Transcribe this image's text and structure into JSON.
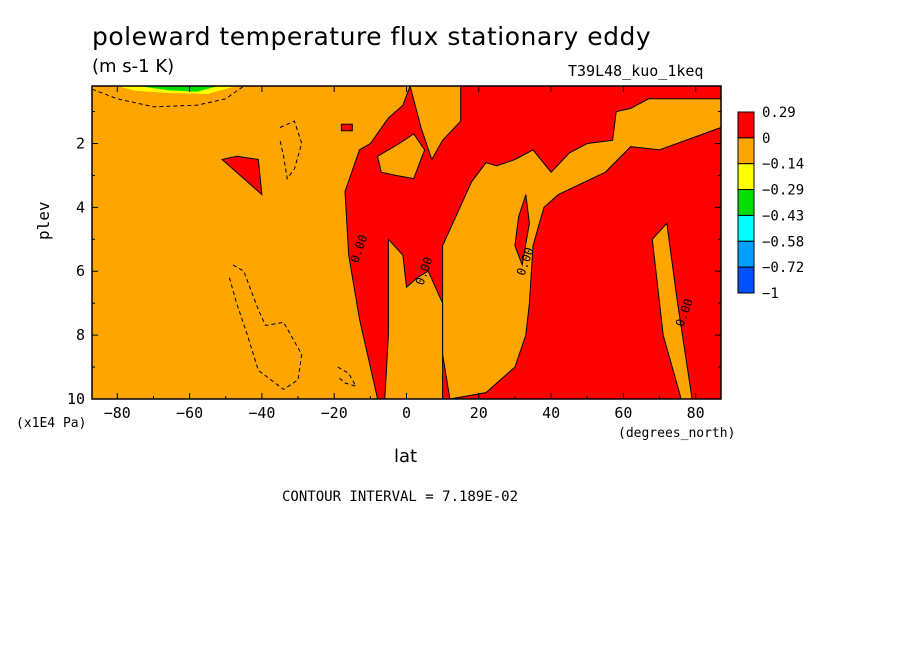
{
  "chart_data": {
    "type": "heatmap",
    "title": "poleward temperature flux stationary eddy",
    "units": "(m s-1 K)",
    "run_label": "T39L48_kuo_1keq",
    "xlabel": "lat",
    "ylabel": "plev",
    "xunits": "(degrees_north)",
    "yunits": "(x1E4 Pa)",
    "xlim": [
      -87,
      87
    ],
    "ylim": [
      10,
      0.2
    ],
    "x_ticks": [
      -80,
      -60,
      -40,
      -20,
      0,
      20,
      40,
      60,
      80
    ],
    "x_tick_labels": [
      "−80",
      "−60",
      "−40",
      "−20",
      "0",
      "20",
      "40",
      "60",
      "80"
    ],
    "y_ticks": [
      2,
      4,
      6,
      8,
      10
    ],
    "y_tick_labels": [
      "2",
      "4",
      "6",
      "8",
      "10"
    ],
    "contour_interval_text": "CONTOUR INTERVAL = 7.189E-02",
    "contour_label_text": "0.00",
    "contour_label_positions": [
      [
        -13,
        5.3
      ],
      [
        5,
        6.0
      ],
      [
        33,
        5.7
      ],
      [
        77,
        7.3
      ]
    ],
    "colorbar": {
      "levels": [
        0.29,
        0,
        -0.14,
        -0.29,
        -0.43,
        -0.58,
        -0.72,
        -1
      ],
      "level_labels": [
        "0.29",
        "0",
        "−0.14",
        "−0.29",
        "−0.43",
        "−0.58",
        "−0.72",
        "−1"
      ],
      "colors": [
        "#ff0000",
        "#ffa500",
        "#ffff00",
        "#00dd00",
        "#00ffff",
        "#00a0ff",
        "#0050ff"
      ]
    },
    "regions": {
      "background_color": "#ffa500",
      "positive_color": "#ff0000",
      "positive_main": [
        [
          1,
          0.2
        ],
        [
          87,
          0.2
        ],
        [
          87,
          10
        ],
        [
          79,
          10
        ],
        [
          75,
          7
        ],
        [
          72,
          4.5
        ],
        [
          68,
          5
        ],
        [
          71,
          8
        ],
        [
          76,
          10
        ],
        [
          10,
          10
        ],
        [
          10,
          7
        ],
        [
          8,
          6.5
        ],
        [
          6,
          6
        ],
        [
          3,
          6.2
        ],
        [
          0,
          6.5
        ],
        [
          -1,
          5.5
        ],
        [
          -5,
          5
        ],
        [
          -5,
          8
        ],
        [
          -6,
          10
        ],
        [
          -8,
          10
        ],
        [
          -10,
          9
        ],
        [
          -13,
          7.5
        ],
        [
          -16,
          5.5
        ],
        [
          -17,
          3.5
        ],
        [
          -13,
          2.2
        ],
        [
          -10,
          2.0
        ],
        [
          -5,
          1.2
        ],
        [
          -1,
          0.8
        ]
      ],
      "negative_in_positive": [
        [
          [
            1,
            0.2
          ],
          [
            4,
            1.5
          ],
          [
            7,
            2.5
          ],
          [
            10,
            1.9
          ],
          [
            15,
            1.3
          ],
          [
            15,
            0.2
          ]
        ],
        [
          [
            -8,
            2.4
          ],
          [
            -2,
            2.0
          ],
          [
            2,
            1.7
          ],
          [
            5,
            2.2
          ],
          [
            2,
            3.1
          ],
          [
            -3,
            3.0
          ],
          [
            -7,
            2.9
          ]
        ],
        [
          [
            25,
            2.7
          ],
          [
            30,
            2.5
          ],
          [
            35,
            2.2
          ],
          [
            40,
            2.9
          ],
          [
            45,
            2.3
          ],
          [
            50,
            2.0
          ],
          [
            57,
            1.9
          ],
          [
            58,
            1.0
          ],
          [
            62,
            0.9
          ],
          [
            67,
            0.6
          ],
          [
            87,
            0.6
          ],
          [
            87,
            1.5
          ],
          [
            70,
            2.2
          ],
          [
            62,
            2.1
          ],
          [
            55,
            2.9
          ],
          [
            42,
            3.6
          ],
          [
            38,
            4.0
          ],
          [
            35,
            5.2
          ],
          [
            34,
            7.0
          ],
          [
            33,
            8.0
          ],
          [
            30,
            9.0
          ],
          [
            22,
            9.8
          ],
          [
            12,
            10
          ],
          [
            10,
            8.6
          ],
          [
            10,
            5.2
          ],
          [
            14,
            4.2
          ],
          [
            18,
            3.2
          ],
          [
            22,
            2.6
          ]
        ]
      ],
      "positive_in_negative": [
        [
          [
            -43,
            3.3
          ],
          [
            -40,
            3.6
          ],
          [
            -41,
            2.5
          ],
          [
            -47,
            2.4
          ],
          [
            -51,
            2.5
          ]
        ],
        [
          [
            30,
            5.2
          ],
          [
            31,
            4.3
          ],
          [
            33,
            3.6
          ],
          [
            34,
            4.5
          ],
          [
            32,
            5.8
          ]
        ],
        [
          [
            -18,
            1.6
          ],
          [
            -15,
            1.6
          ],
          [
            -15,
            1.4
          ],
          [
            -18,
            1.4
          ]
        ]
      ],
      "low_values_cap": [
        [
          -87,
          0.2
        ],
        [
          -45,
          0.2
        ],
        [
          -52,
          0.5
        ],
        [
          -62,
          0.55
        ],
        [
          -75,
          0.5
        ],
        [
          -87,
          0.3
        ]
      ],
      "yellow_cap": [
        [
          -80,
          0.2
        ],
        [
          -47,
          0.2
        ],
        [
          -55,
          0.45
        ],
        [
          -66,
          0.42
        ],
        [
          -75,
          0.35
        ]
      ],
      "green_cap": [
        [
          -74,
          0.2
        ],
        [
          -52,
          0.2
        ],
        [
          -58,
          0.38
        ],
        [
          -66,
          0.33
        ]
      ]
    },
    "dashed_contours": [
      [
        [
          -87,
          0.3
        ],
        [
          -80,
          0.6
        ],
        [
          -70,
          0.85
        ],
        [
          -58,
          0.8
        ],
        [
          -50,
          0.6
        ],
        [
          -45,
          0.2
        ]
      ],
      [
        [
          -35,
          1.5
        ],
        [
          -31,
          1.3
        ],
        [
          -29,
          2.0
        ],
        [
          -31,
          2.8
        ],
        [
          -33,
          3.1
        ],
        [
          -34,
          2.4
        ],
        [
          -35,
          1.9
        ]
      ],
      [
        [
          -48,
          5.8
        ],
        [
          -45,
          6.0
        ],
        [
          -41,
          7.2
        ],
        [
          -39,
          7.7
        ],
        [
          -34,
          7.6
        ],
        [
          -29,
          8.6
        ],
        [
          -30,
          9.4
        ],
        [
          -34,
          9.7
        ],
        [
          -41,
          9.1
        ],
        [
          -44,
          8.0
        ],
        [
          -47,
          7.0
        ],
        [
          -49,
          6.2
        ]
      ],
      [
        [
          -19,
          9.0
        ],
        [
          -16,
          9.2
        ],
        [
          -14,
          9.6
        ],
        [
          -17,
          9.5
        ],
        [
          -19,
          9.3
        ]
      ]
    ]
  }
}
